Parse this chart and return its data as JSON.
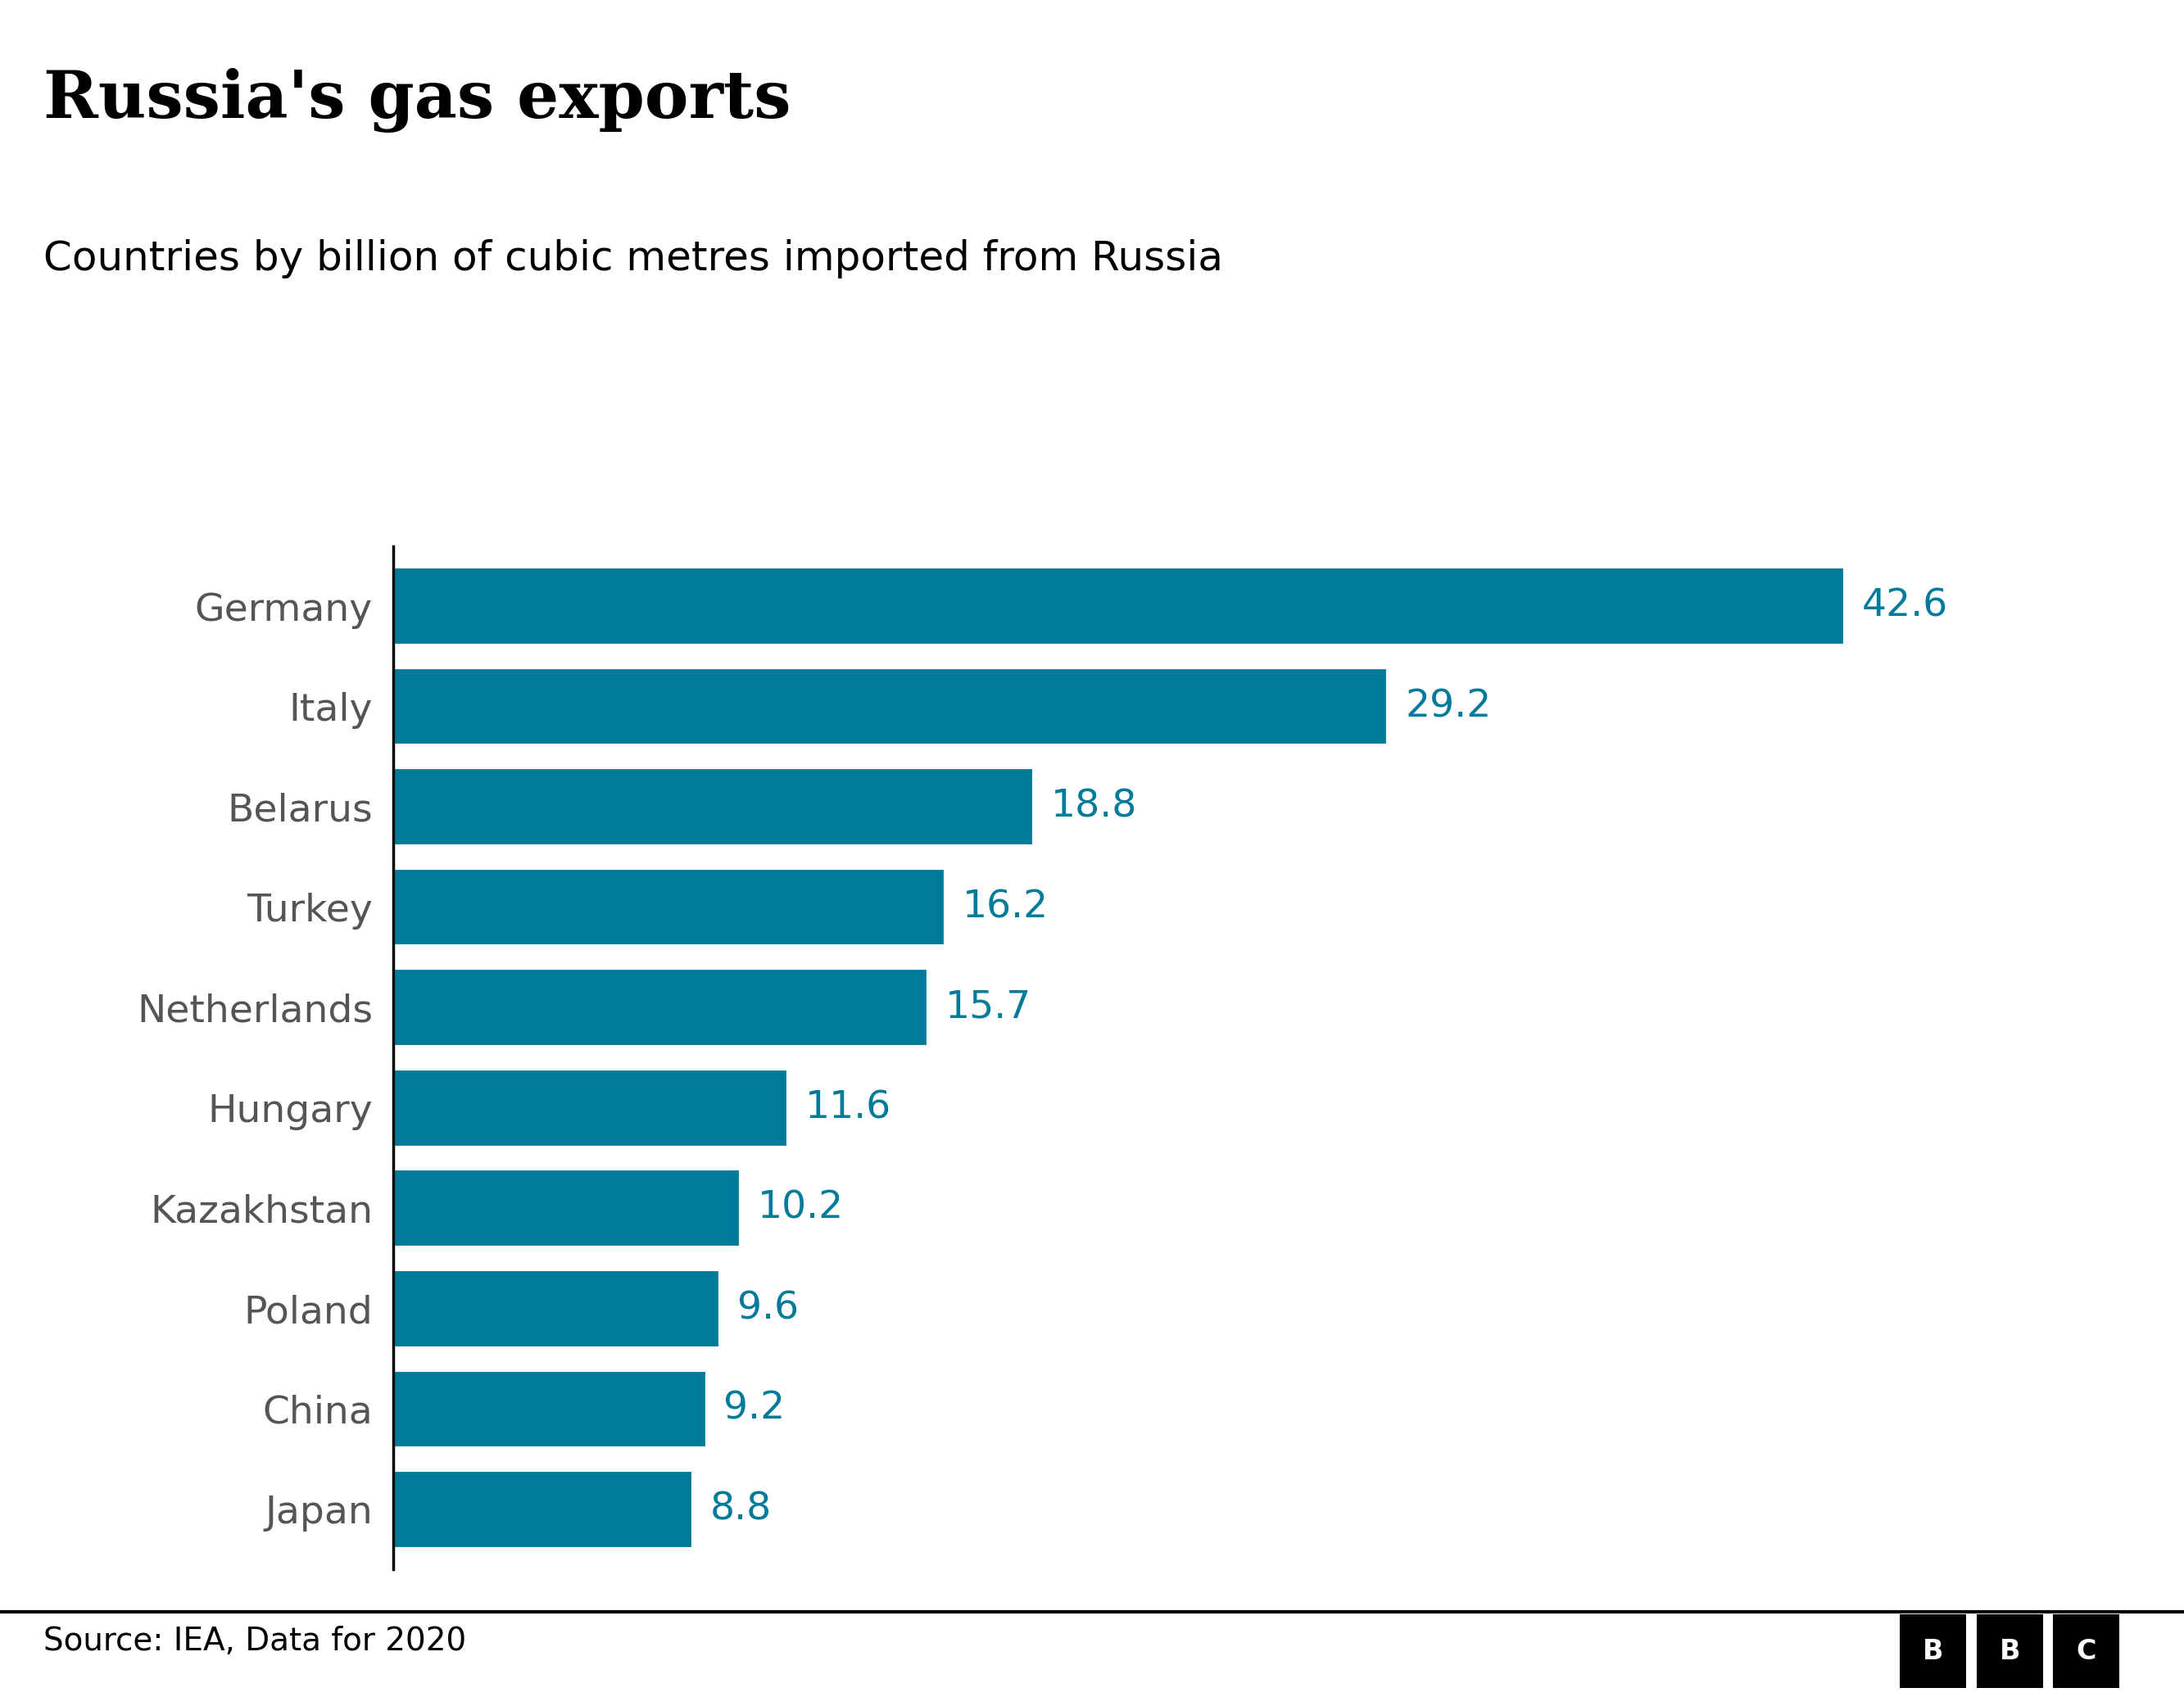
{
  "title": "Russia's gas exports",
  "subtitle": "Countries by billion of cubic metres imported from Russia",
  "source": "Source: IEA, Data for 2020",
  "categories": [
    "Germany",
    "Italy",
    "Belarus",
    "Turkey",
    "Netherlands",
    "Hungary",
    "Kazakhstan",
    "Poland",
    "China",
    "Japan"
  ],
  "values": [
    42.6,
    29.2,
    18.8,
    16.2,
    15.7,
    11.6,
    10.2,
    9.6,
    9.2,
    8.8
  ],
  "bar_color": "#007A99",
  "value_color": "#007A99",
  "label_color": "#555555",
  "title_color": "#000000",
  "subtitle_color": "#000000",
  "background_color": "#ffffff",
  "bar_height": 0.78,
  "xlim": [
    0,
    50
  ],
  "title_fontsize": 58,
  "subtitle_fontsize": 36,
  "label_fontsize": 34,
  "value_fontsize": 34,
  "source_fontsize": 28
}
